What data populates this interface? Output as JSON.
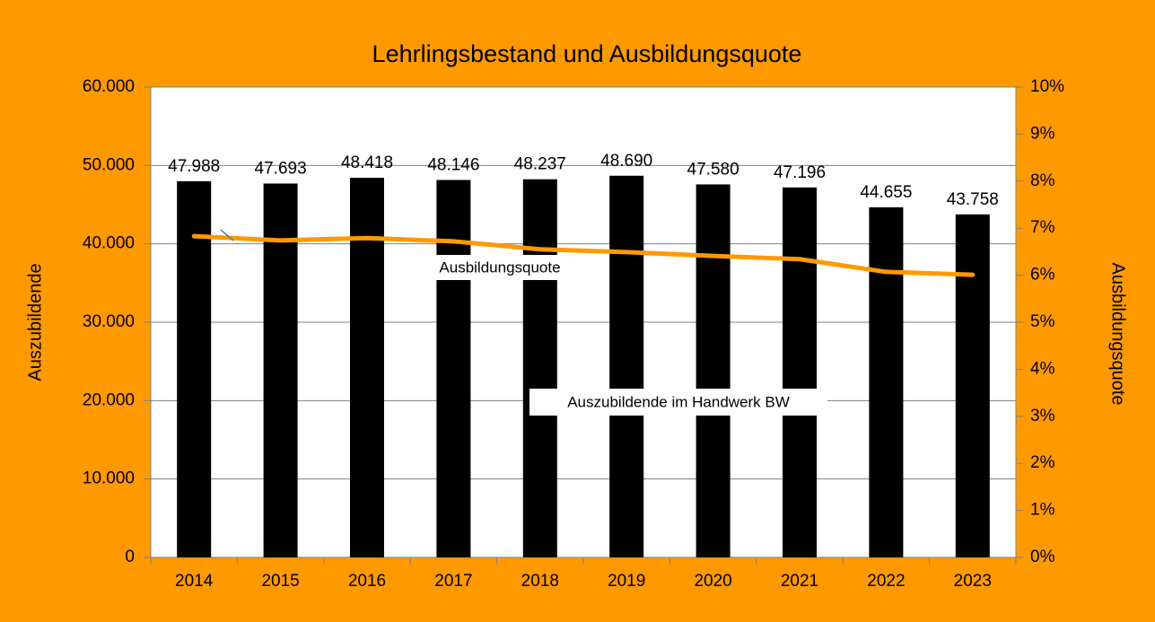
{
  "chart_data": {
    "type": "bar",
    "title": "Lehrlingsbestand und Ausbildungsquote",
    "ylabel": "Auszubildende",
    "y2label": "Ausbildungsquote",
    "categories": [
      "2014",
      "2015",
      "2016",
      "2017",
      "2018",
      "2019",
      "2020",
      "2021",
      "2022",
      "2023"
    ],
    "series": [
      {
        "name": "Auszubildende im Handwerk BW",
        "type": "bar",
        "color": "#000000",
        "values": [
          47988,
          47693,
          48418,
          48146,
          48237,
          48690,
          47580,
          47196,
          44655,
          43758
        ],
        "value_labels": [
          "47.988",
          "47.693",
          "48.418",
          "48.146",
          "48.237",
          "48.690",
          "47.580",
          "47.196",
          "44.655",
          "43.758"
        ]
      },
      {
        "name": "Ausbildungsquote",
        "type": "line",
        "axis": "y2",
        "color": "#ff9900",
        "values": [
          6.83,
          6.74,
          6.79,
          6.72,
          6.55,
          6.49,
          6.41,
          6.34,
          6.07,
          6.01
        ]
      }
    ],
    "ylim": [
      0,
      60000
    ],
    "yticks": [
      0,
      {
        "value": 10000,
        "label": "10.000"
      },
      {
        "value": 20000,
        "label": "20.000"
      },
      {
        "value": 30000,
        "label": "30.000"
      },
      {
        "value": 40000,
        "label": "40.000"
      },
      {
        "value": 50000,
        "label": "50.000"
      },
      {
        "value": 60000,
        "label": "60.000"
      }
    ],
    "y2lim": [
      0,
      10
    ],
    "y2ticks": [
      {
        "value": 0,
        "label": "0%"
      },
      {
        "value": 1,
        "label": "1%"
      },
      {
        "value": 2,
        "label": "2%"
      },
      {
        "value": 3,
        "label": "3%"
      },
      {
        "value": 4,
        "label": "4%"
      },
      {
        "value": 5,
        "label": "5%"
      },
      {
        "value": 6,
        "label": "6%"
      },
      {
        "value": 7,
        "label": "7%"
      },
      {
        "value": 8,
        "label": "8%"
      },
      {
        "value": 9,
        "label": "9%"
      },
      {
        "value": 10,
        "label": "10%"
      }
    ],
    "grid": true
  }
}
